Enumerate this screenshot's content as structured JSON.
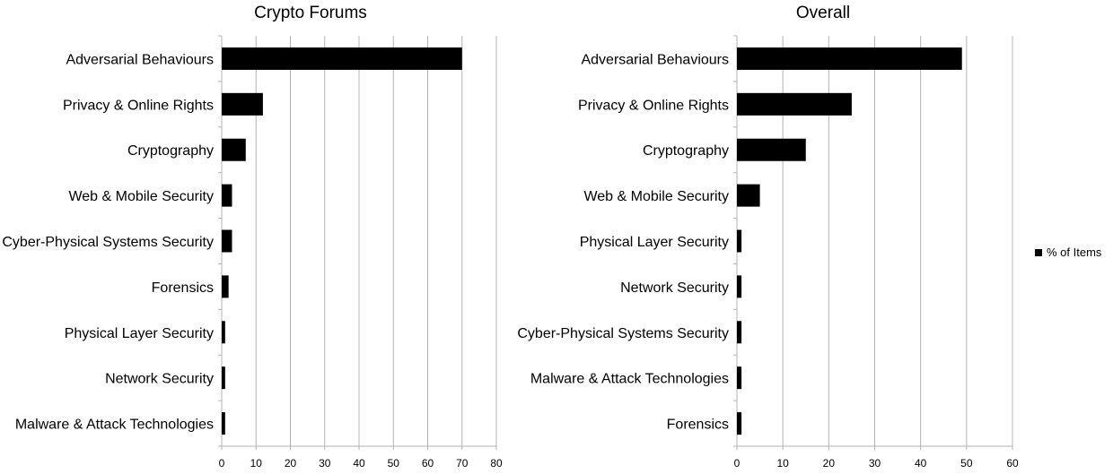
{
  "chart_data": [
    {
      "type": "bar",
      "orientation": "horizontal",
      "title": "Crypto Forums",
      "categories": [
        "Adversarial Behaviours",
        "Privacy & Online Rights",
        "Cryptography",
        "Web & Mobile Security",
        "Cyber-Physical Systems Security",
        "Forensics",
        "Physical Layer Security",
        "Network Security",
        "Malware & Attack Technologies"
      ],
      "values": [
        70,
        12,
        7,
        3,
        3,
        2,
        1,
        1,
        1
      ],
      "xlim": [
        0,
        80
      ],
      "xticks": [
        0,
        10,
        20,
        30,
        40,
        50,
        60,
        70,
        80
      ],
      "grid": true,
      "bar_color": "#000000"
    },
    {
      "type": "bar",
      "orientation": "horizontal",
      "title": "Overall",
      "categories": [
        "Adversarial Behaviours",
        "Privacy & Online Rights",
        "Cryptography",
        "Web & Mobile Security",
        "Physical Layer Security",
        "Network Security",
        "Cyber-Physical Systems Security",
        "Malware & Attack Technologies",
        "Forensics"
      ],
      "values": [
        49,
        25,
        15,
        5,
        1,
        1,
        1,
        1,
        1
      ],
      "xlim": [
        0,
        60
      ],
      "xticks": [
        0,
        10,
        20,
        30,
        40,
        50,
        60
      ],
      "grid": true,
      "bar_color": "#000000"
    }
  ],
  "legend": {
    "label": "% of Items",
    "placement": "right",
    "color": "#000000"
  }
}
